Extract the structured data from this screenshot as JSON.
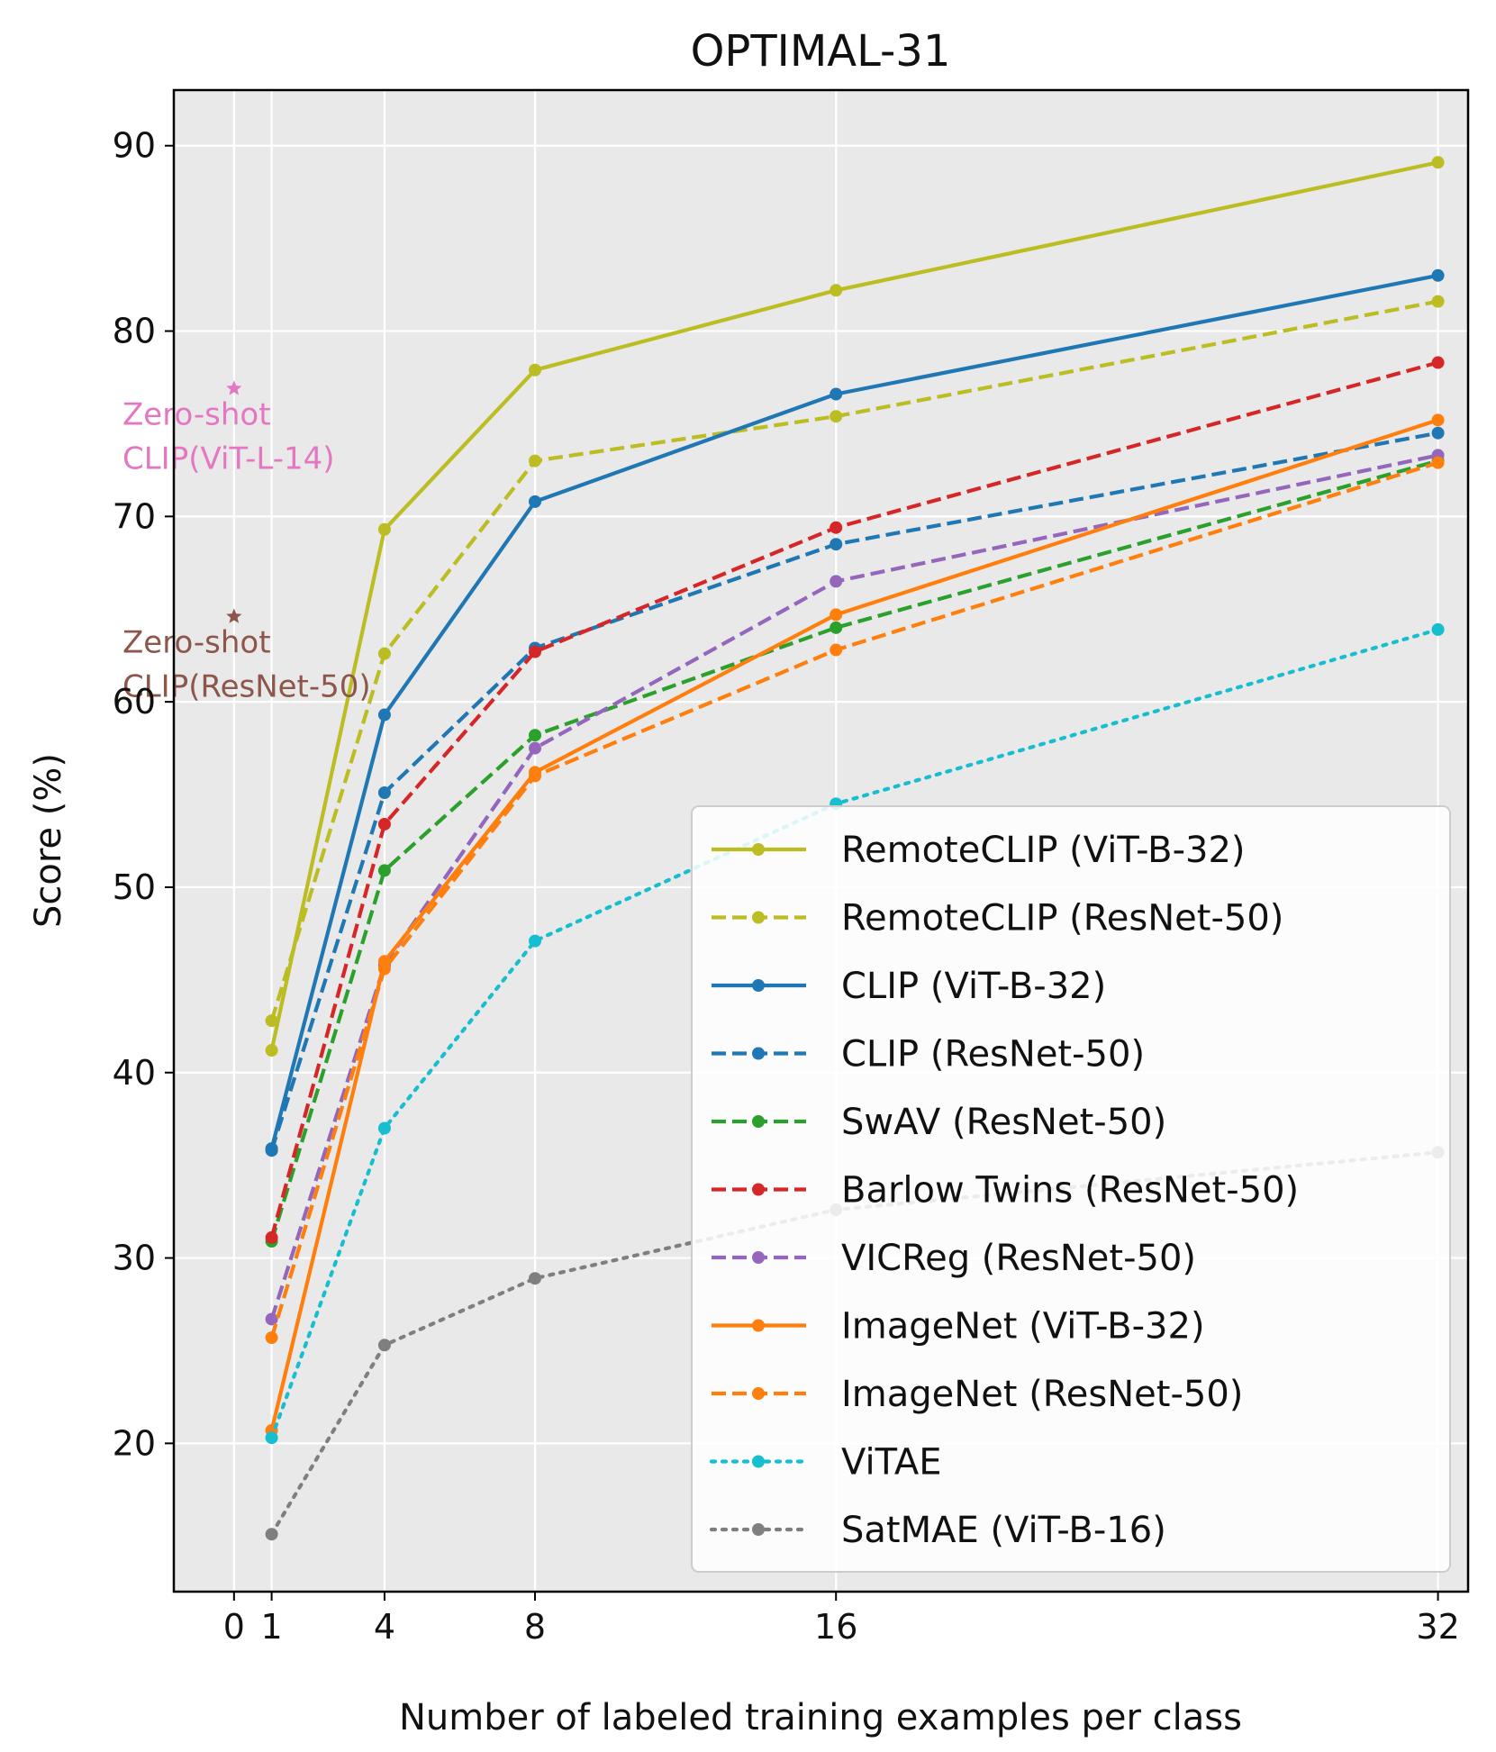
{
  "chart_data": {
    "type": "line",
    "title": "OPTIMAL-31",
    "xlabel": "Number of labeled training examples per class",
    "ylabel": "Score (%)",
    "x_ticks": [
      0,
      1,
      4,
      8,
      16,
      32
    ],
    "y_ticks": [
      20,
      30,
      40,
      50,
      60,
      70,
      80,
      90
    ],
    "xlim": [
      -1.6,
      32.8
    ],
    "ylim": [
      12.0,
      93.0
    ],
    "grid": true,
    "legend_position": "lower-right",
    "x": [
      1,
      4,
      8,
      16,
      32
    ],
    "series": [
      {
        "name": "RemoteCLIP (ViT-B-32)",
        "color": "#bcbd22",
        "style": "solid",
        "values": [
          41.2,
          69.3,
          77.9,
          82.2,
          89.1
        ]
      },
      {
        "name": "RemoteCLIP (ResNet-50)",
        "color": "#bcbd22",
        "style": "dashed",
        "values": [
          42.8,
          62.6,
          73.0,
          75.4,
          81.6
        ]
      },
      {
        "name": "CLIP (ViT-B-32)",
        "color": "#1f77b4",
        "style": "solid",
        "values": [
          35.9,
          59.3,
          70.8,
          76.6,
          83.0
        ]
      },
      {
        "name": "CLIP (ResNet-50)",
        "color": "#1f77b4",
        "style": "dashed",
        "values": [
          35.8,
          55.1,
          62.9,
          68.5,
          74.5
        ]
      },
      {
        "name": "SwAV (ResNet-50)",
        "color": "#2ca02c",
        "style": "dashed",
        "values": [
          30.9,
          50.9,
          58.2,
          64.0,
          73.0
        ]
      },
      {
        "name": "Barlow Twins (ResNet-50)",
        "color": "#d62728",
        "style": "dashed",
        "values": [
          31.1,
          53.4,
          62.7,
          69.4,
          78.3
        ]
      },
      {
        "name": "VICReg (ResNet-50)",
        "color": "#9467bd",
        "style": "dashed",
        "values": [
          26.7,
          45.8,
          57.5,
          66.5,
          73.3
        ]
      },
      {
        "name": "ImageNet (ViT-B-32)",
        "color": "#ff7f0e",
        "style": "solid",
        "values": [
          20.7,
          46.0,
          56.2,
          64.7,
          75.2
        ]
      },
      {
        "name": "ImageNet (ResNet-50)",
        "color": "#ff7f0e",
        "style": "dashed",
        "values": [
          25.7,
          45.6,
          56.0,
          62.8,
          72.9
        ]
      },
      {
        "name": "ViTAE",
        "color": "#17becf",
        "style": "dotted",
        "values": [
          20.3,
          37.0,
          47.1,
          54.5,
          63.9
        ]
      },
      {
        "name": "SatMAE (ViT-B-16)",
        "color": "#7f7f7f",
        "style": "dotted",
        "values": [
          15.1,
          25.3,
          28.9,
          32.6,
          35.7
        ]
      }
    ],
    "zero_shot": [
      {
        "label_line1": "Zero-shot",
        "label_line2": "CLIP(ViT-L-14)",
        "x": 0,
        "y": 76.9,
        "color": "#e377c2"
      },
      {
        "label_line1": "Zero-shot",
        "label_line2": "CLIP(ResNet-50)",
        "x": 0,
        "y": 64.6,
        "color": "#8c564b"
      }
    ]
  }
}
